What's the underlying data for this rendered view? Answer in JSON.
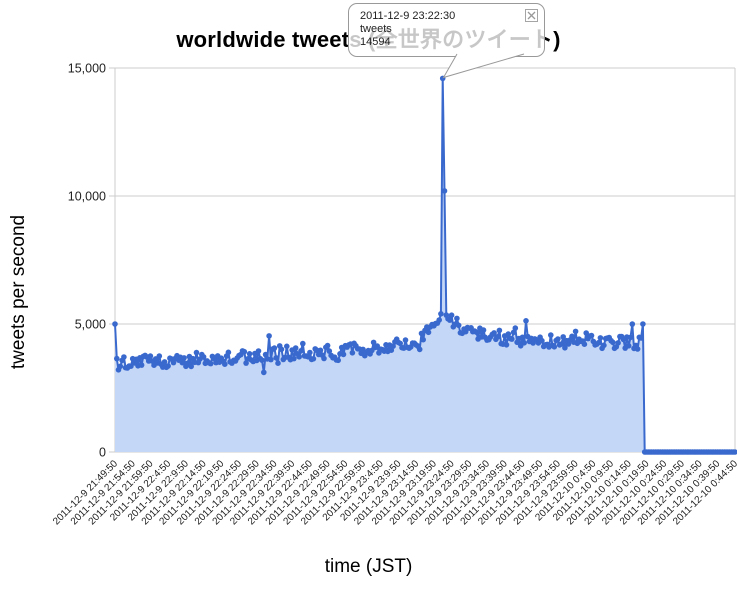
{
  "tooltip": {
    "timestamp": "2011-12-9 23:22:30",
    "series_label": "tweets",
    "value": "14594",
    "close_icon": "x-icon"
  },
  "chart_data": {
    "type": "area",
    "title": "worldwide tweets (全世界のツイート)",
    "xlabel": "time (JST)",
    "ylabel": "tweets per second",
    "ylim": [
      0,
      15000
    ],
    "grid": true,
    "legend": "none",
    "yticks": [
      {
        "v": 0,
        "label": "0"
      },
      {
        "v": 5000,
        "label": "5,000"
      },
      {
        "v": 10000,
        "label": "10,000"
      },
      {
        "v": 15000,
        "label": "15,000"
      }
    ],
    "x_ticks": [
      "2011-12-9 21:49:50",
      "2011-12-9 21:54:50",
      "2011-12-9 21:59:50",
      "2011-12-9 22:4:50",
      "2011-12-9 22:9:50",
      "2011-12-9 22:14:50",
      "2011-12-9 22:19:50",
      "2011-12-9 22:24:50",
      "2011-12-9 22:29:50",
      "2011-12-9 22:34:50",
      "2011-12-9 22:39:50",
      "2011-12-9 22:44:50",
      "2011-12-9 22:49:50",
      "2011-12-9 22:54:50",
      "2011-12-9 22:59:50",
      "2011-12-9 23:4:50",
      "2011-12-9 23:9:50",
      "2011-12-9 23:14:50",
      "2011-12-9 23:19:50",
      "2011-12-9 23:24:50",
      "2011-12-9 23:29:50",
      "2011-12-9 23:34:50",
      "2011-12-9 23:39:50",
      "2011-12-9 23:44:50",
      "2011-12-9 23:49:50",
      "2011-12-9 23:54:50",
      "2011-12-9 23:59:50",
      "2011-12-10 0:4:50",
      "2011-12-10 0:9:50",
      "2011-12-10 0:14:50",
      "2011-12-10 0:19:50",
      "2011-12-10 0:24:50",
      "2011-12-10 0:29:50",
      "2011-12-10 0:34:50",
      "2011-12-10 0:39:50",
      "2011-12-10 0:44:50"
    ],
    "x_tick_interval_minutes": 5,
    "x_total_minutes": 175,
    "sample_interval_minutes": 0.5,
    "series": [
      {
        "name": "tweets",
        "line_color": "#3A69CE",
        "point_color": "#3A69CE",
        "fill_color": "#C5D7F7",
        "first_point": {
          "t_minutes": 0,
          "value": 5000
        },
        "baseline_anchors": [
          [
            0,
            3450
          ],
          [
            20,
            3600
          ],
          [
            40,
            3760
          ],
          [
            60,
            3900
          ],
          [
            75,
            4060
          ],
          [
            85,
            4350
          ],
          [
            88,
            4650
          ],
          [
            91,
            5100
          ],
          [
            92,
            5500
          ],
          [
            93,
            5750
          ],
          [
            94,
            5350
          ],
          [
            96,
            5000
          ],
          [
            100,
            4750
          ],
          [
            106,
            4500
          ],
          [
            115,
            4380
          ],
          [
            130,
            4320
          ],
          [
            142,
            4260
          ],
          [
            149,
            4250
          ]
        ],
        "noise_amplitude": 270,
        "spike": {
          "t_minutes": 92.5,
          "value": 14594,
          "time_label": "2011-12-9 23:22:30"
        },
        "post_spike_point": {
          "t_minutes": 93,
          "value": 10200
        },
        "last_nonzero_point": {
          "t_minutes": 149,
          "value": 5000
        },
        "zero_tail": {
          "from_minutes": 149.5,
          "to_minutes": 175,
          "value": 0
        },
        "value_floor": 2950,
        "seed": 20111209
      }
    ],
    "grid_color": "#CCCCCC",
    "axis_text_color": "#222222"
  },
  "layout_annotations": {
    "spike_note": "peak annotated by tooltip at 2011-12-9 23:22:30 = 14594 tweets/sec",
    "tail_note": "series drops to 0 after ~2011-12-10 0:18 and stays flat to right edge"
  }
}
